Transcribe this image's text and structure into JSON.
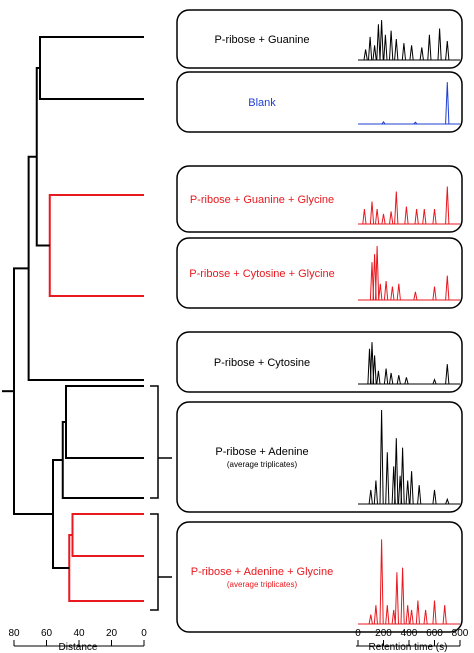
{
  "colors": {
    "black": "#000000",
    "red": "#e8191f",
    "blue": "#1f3fd1"
  },
  "chart_data": {
    "type": "dendrogram_with_chromatograms",
    "samples": [
      {
        "label": "P-ribose + Guanine",
        "subtitle": "",
        "color": "black",
        "peaks": [
          [
            60,
            0.25
          ],
          [
            95,
            0.55
          ],
          [
            130,
            0.35
          ],
          [
            160,
            0.85
          ],
          [
            185,
            0.95
          ],
          [
            215,
            0.6
          ],
          [
            260,
            0.7
          ],
          [
            300,
            0.5
          ],
          [
            360,
            0.4
          ],
          [
            420,
            0.35
          ],
          [
            500,
            0.3
          ],
          [
            560,
            0.6
          ],
          [
            640,
            0.75
          ],
          [
            700,
            0.45
          ]
        ]
      },
      {
        "label": "Blank",
        "subtitle": "",
        "color": "blue",
        "peaks": [
          [
            200,
            0.05
          ],
          [
            450,
            0.04
          ],
          [
            700,
            0.95
          ]
        ]
      },
      {
        "label": "P-ribose + Guanine + Glycine",
        "subtitle": "",
        "color": "red",
        "peaks": [
          [
            50,
            0.3
          ],
          [
            110,
            0.45
          ],
          [
            150,
            0.3
          ],
          [
            200,
            0.2
          ],
          [
            260,
            0.25
          ],
          [
            300,
            0.65
          ],
          [
            380,
            0.35
          ],
          [
            460,
            0.3
          ],
          [
            520,
            0.3
          ],
          [
            600,
            0.3
          ],
          [
            700,
            0.75
          ]
        ]
      },
      {
        "label": "P-ribose + Cytosine + Glycine",
        "subtitle": "",
        "color": "red",
        "peaks": [
          [
            110,
            0.7
          ],
          [
            130,
            0.85
          ],
          [
            150,
            1.0
          ],
          [
            175,
            0.3
          ],
          [
            220,
            0.35
          ],
          [
            270,
            0.25
          ],
          [
            320,
            0.3
          ],
          [
            450,
            0.15
          ],
          [
            600,
            0.25
          ],
          [
            700,
            0.45
          ]
        ]
      },
      {
        "label": "P-ribose + Cytosine",
        "subtitle": "",
        "color": "black",
        "peaks": [
          [
            90,
            0.8
          ],
          [
            110,
            0.95
          ],
          [
            130,
            0.65
          ],
          [
            160,
            0.3
          ],
          [
            220,
            0.35
          ],
          [
            260,
            0.25
          ],
          [
            320,
            0.2
          ],
          [
            380,
            0.15
          ],
          [
            600,
            0.1
          ],
          [
            700,
            0.45
          ]
        ]
      },
      {
        "label": "P-ribose + Adenine",
        "subtitle": "(average triplicates)",
        "color": "black",
        "peaks": [
          [
            100,
            0.15
          ],
          [
            140,
            0.25
          ],
          [
            185,
            1.0
          ],
          [
            230,
            0.55
          ],
          [
            280,
            0.4
          ],
          [
            300,
            0.7
          ],
          [
            330,
            0.3
          ],
          [
            350,
            0.6
          ],
          [
            390,
            0.25
          ],
          [
            420,
            0.35
          ],
          [
            480,
            0.2
          ],
          [
            600,
            0.15
          ],
          [
            700,
            0.05
          ]
        ]
      },
      {
        "label": "P-ribose + Adenine + Glycine",
        "subtitle": "(average triplicates)",
        "color": "red",
        "peaks": [
          [
            100,
            0.1
          ],
          [
            140,
            0.2
          ],
          [
            185,
            0.9
          ],
          [
            230,
            0.2
          ],
          [
            280,
            0.15
          ],
          [
            305,
            0.55
          ],
          [
            350,
            0.6
          ],
          [
            390,
            0.2
          ],
          [
            420,
            0.15
          ],
          [
            470,
            0.25
          ],
          [
            530,
            0.15
          ],
          [
            600,
            0.25
          ],
          [
            680,
            0.2
          ]
        ]
      }
    ],
    "dendrogram": {
      "leaves": [
        0,
        1,
        2,
        3,
        4,
        5,
        6
      ],
      "links": [
        {
          "a": "L0",
          "b": "L1",
          "height": 64,
          "color": "black",
          "id": "N1"
        },
        {
          "a": "L2",
          "b": "L3",
          "height": 58,
          "color": "red",
          "id": "N2"
        },
        {
          "a": "N1",
          "b": "N2",
          "height": 66,
          "color": "black",
          "id": "N3"
        },
        {
          "a": "N3",
          "b": "L4",
          "height": 71,
          "color": "black",
          "id": "N4"
        },
        {
          "a": "L5",
          "b": "L5b",
          "height": 48,
          "color": "black",
          "id": "N5"
        },
        {
          "a": "N5",
          "b": "L5c",
          "height": 50,
          "color": "black",
          "id": "N6"
        },
        {
          "a": "L6",
          "b": "L6b",
          "height": 44,
          "color": "red",
          "id": "N7"
        },
        {
          "a": "N7",
          "b": "L6c",
          "height": 46,
          "color": "red",
          "id": "N8"
        },
        {
          "a": "N6",
          "b": "N8",
          "height": 56,
          "color": "black",
          "id": "N9"
        },
        {
          "a": "N4",
          "b": "N9",
          "height": 80,
          "color": "black",
          "id": "N10"
        }
      ]
    },
    "x_axis_dendrogram": {
      "label": "Distance",
      "ticks": [
        80,
        60,
        40,
        20,
        0
      ],
      "range": [
        80,
        0
      ]
    },
    "x_axis_chromatogram": {
      "label": "Retention time (s)",
      "ticks": [
        0,
        200,
        400,
        600,
        800
      ],
      "range": [
        0,
        800
      ]
    }
  }
}
